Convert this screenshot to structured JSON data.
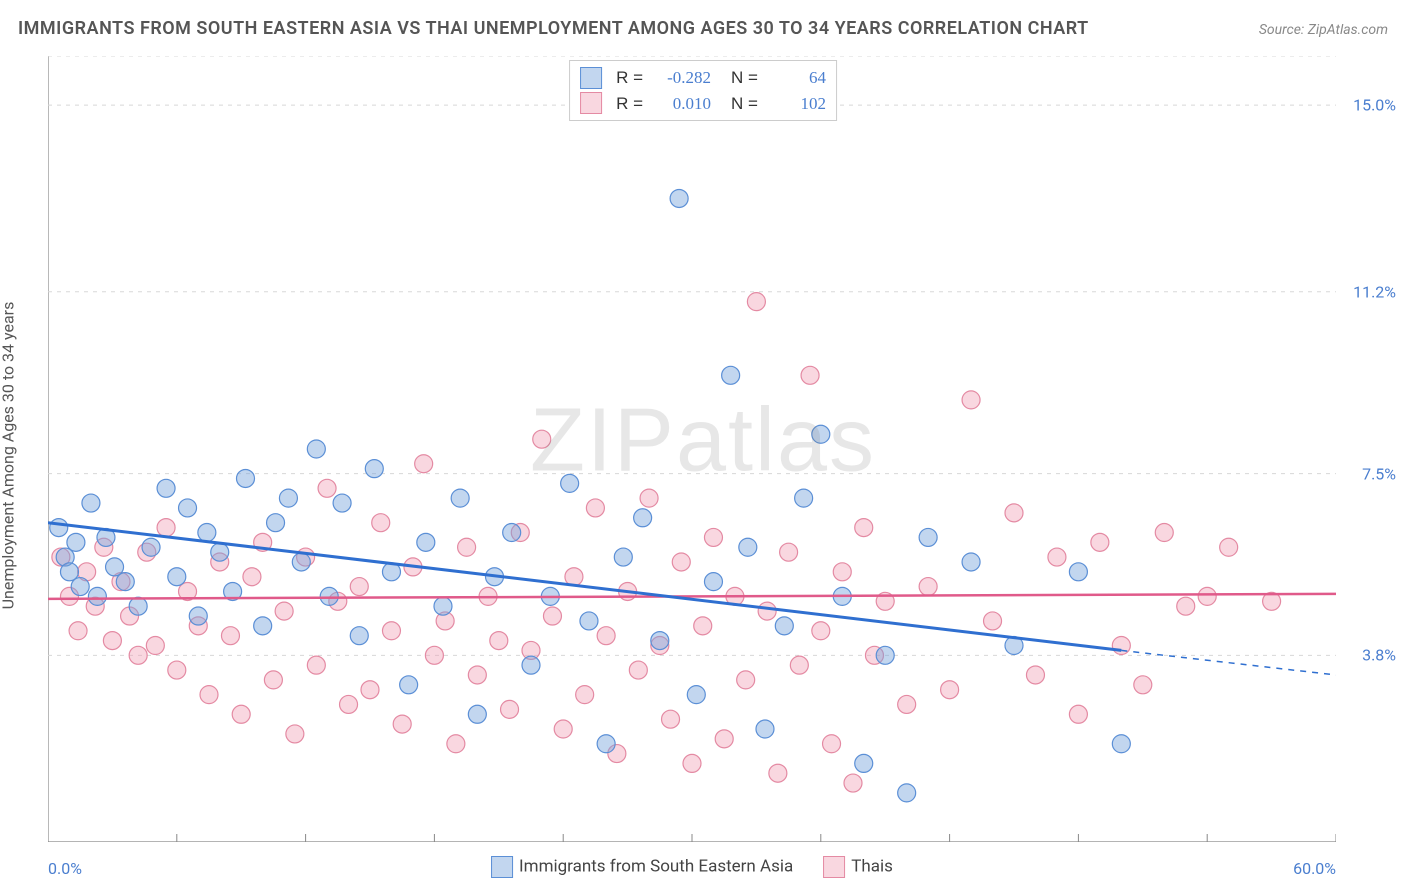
{
  "title": "IMMIGRANTS FROM SOUTH EASTERN ASIA VS THAI UNEMPLOYMENT AMONG AGES 30 TO 34 YEARS CORRELATION CHART",
  "source": "Source: ZipAtlas.com",
  "watermark": "ZIPatlas",
  "ylabel": "Unemployment Among Ages 30 to 34 years",
  "chart": {
    "type": "scatter",
    "background_color": "#ffffff",
    "grid_color": "#d8d8d8",
    "axis_color": "#888888",
    "xlim": [
      0.0,
      60.0
    ],
    "ylim": [
      0.0,
      16.0
    ],
    "xmin_label": "0.0%",
    "xmax_label": "60.0%",
    "yticks": [
      {
        "v": 3.8,
        "label": "3.8%"
      },
      {
        "v": 7.5,
        "label": "7.5%"
      },
      {
        "v": 11.2,
        "label": "11.2%"
      },
      {
        "v": 15.0,
        "label": "15.0%"
      }
    ],
    "xticks_minor": [
      0,
      6,
      12,
      18,
      24,
      30,
      36,
      42,
      48,
      54,
      60
    ],
    "series": [
      {
        "name_key": "blue",
        "label": "Immigrants from South Eastern Asia",
        "fill": "rgba(120,165,220,0.45)",
        "stroke": "#5b8fd6",
        "marker_radius": 9,
        "line_color": "#2f6fd0",
        "line_width": 3,
        "trend": {
          "x1": 0,
          "y1": 6.5,
          "x2": 50,
          "y2": 3.9,
          "x_dash_to": 60,
          "y_dash_to": 3.4
        },
        "R": "-0.282",
        "N": "64",
        "points": [
          [
            0.5,
            6.4
          ],
          [
            0.8,
            5.8
          ],
          [
            1.0,
            5.5
          ],
          [
            1.3,
            6.1
          ],
          [
            1.5,
            5.2
          ],
          [
            2.0,
            6.9
          ],
          [
            2.3,
            5.0
          ],
          [
            2.7,
            6.2
          ],
          [
            3.1,
            5.6
          ],
          [
            3.6,
            5.3
          ],
          [
            4.2,
            4.8
          ],
          [
            4.8,
            6.0
          ],
          [
            5.5,
            7.2
          ],
          [
            6.0,
            5.4
          ],
          [
            6.5,
            6.8
          ],
          [
            7.0,
            4.6
          ],
          [
            7.4,
            6.3
          ],
          [
            8.0,
            5.9
          ],
          [
            8.6,
            5.1
          ],
          [
            9.2,
            7.4
          ],
          [
            10.0,
            4.4
          ],
          [
            10.6,
            6.5
          ],
          [
            11.2,
            7.0
          ],
          [
            11.8,
            5.7
          ],
          [
            12.5,
            8.0
          ],
          [
            13.1,
            5.0
          ],
          [
            13.7,
            6.9
          ],
          [
            14.5,
            4.2
          ],
          [
            15.2,
            7.6
          ],
          [
            16.0,
            5.5
          ],
          [
            16.8,
            3.2
          ],
          [
            17.6,
            6.1
          ],
          [
            18.4,
            4.8
          ],
          [
            19.2,
            7.0
          ],
          [
            20.0,
            2.6
          ],
          [
            20.8,
            5.4
          ],
          [
            21.6,
            6.3
          ],
          [
            22.5,
            3.6
          ],
          [
            23.4,
            5.0
          ],
          [
            24.3,
            7.3
          ],
          [
            25.2,
            4.5
          ],
          [
            26.0,
            2.0
          ],
          [
            26.8,
            5.8
          ],
          [
            27.7,
            6.6
          ],
          [
            28.5,
            4.1
          ],
          [
            29.4,
            13.1
          ],
          [
            30.2,
            3.0
          ],
          [
            31.0,
            5.3
          ],
          [
            31.8,
            9.5
          ],
          [
            32.6,
            6.0
          ],
          [
            33.4,
            2.3
          ],
          [
            34.3,
            4.4
          ],
          [
            35.2,
            7.0
          ],
          [
            36.0,
            8.3
          ],
          [
            37.0,
            5.0
          ],
          [
            38.0,
            1.6
          ],
          [
            39.0,
            3.8
          ],
          [
            40.0,
            1.0
          ],
          [
            41.0,
            6.2
          ],
          [
            43.0,
            5.7
          ],
          [
            45.0,
            4.0
          ],
          [
            48.0,
            5.5
          ],
          [
            50.0,
            2.0
          ]
        ]
      },
      {
        "name_key": "pink",
        "label": "Thais",
        "fill": "rgba(240,160,180,0.42)",
        "stroke": "#e48aa3",
        "marker_radius": 9,
        "line_color": "#e05a8a",
        "line_width": 2.5,
        "trend": {
          "x1": 0,
          "y1": 4.95,
          "x2": 60,
          "y2": 5.05
        },
        "R": "0.010",
        "N": "102",
        "points": [
          [
            0.6,
            5.8
          ],
          [
            1.0,
            5.0
          ],
          [
            1.4,
            4.3
          ],
          [
            1.8,
            5.5
          ],
          [
            2.2,
            4.8
          ],
          [
            2.6,
            6.0
          ],
          [
            3.0,
            4.1
          ],
          [
            3.4,
            5.3
          ],
          [
            3.8,
            4.6
          ],
          [
            4.2,
            3.8
          ],
          [
            4.6,
            5.9
          ],
          [
            5.0,
            4.0
          ],
          [
            5.5,
            6.4
          ],
          [
            6.0,
            3.5
          ],
          [
            6.5,
            5.1
          ],
          [
            7.0,
            4.4
          ],
          [
            7.5,
            3.0
          ],
          [
            8.0,
            5.7
          ],
          [
            8.5,
            4.2
          ],
          [
            9.0,
            2.6
          ],
          [
            9.5,
            5.4
          ],
          [
            10.0,
            6.1
          ],
          [
            10.5,
            3.3
          ],
          [
            11.0,
            4.7
          ],
          [
            11.5,
            2.2
          ],
          [
            12.0,
            5.8
          ],
          [
            12.5,
            3.6
          ],
          [
            13.0,
            7.2
          ],
          [
            13.5,
            4.9
          ],
          [
            14.0,
            2.8
          ],
          [
            14.5,
            5.2
          ],
          [
            15.0,
            3.1
          ],
          [
            15.5,
            6.5
          ],
          [
            16.0,
            4.3
          ],
          [
            16.5,
            2.4
          ],
          [
            17.0,
            5.6
          ],
          [
            17.5,
            7.7
          ],
          [
            18.0,
            3.8
          ],
          [
            18.5,
            4.5
          ],
          [
            19.0,
            2.0
          ],
          [
            19.5,
            6.0
          ],
          [
            20.0,
            3.4
          ],
          [
            20.5,
            5.0
          ],
          [
            21.0,
            4.1
          ],
          [
            21.5,
            2.7
          ],
          [
            22.0,
            6.3
          ],
          [
            22.5,
            3.9
          ],
          [
            23.0,
            8.2
          ],
          [
            23.5,
            4.6
          ],
          [
            24.0,
            2.3
          ],
          [
            24.5,
            5.4
          ],
          [
            25.0,
            3.0
          ],
          [
            25.5,
            6.8
          ],
          [
            26.0,
            4.2
          ],
          [
            26.5,
            1.8
          ],
          [
            27.0,
            5.1
          ],
          [
            27.5,
            3.5
          ],
          [
            28.0,
            7.0
          ],
          [
            28.5,
            4.0
          ],
          [
            29.0,
            2.5
          ],
          [
            29.5,
            5.7
          ],
          [
            30.0,
            1.6
          ],
          [
            30.5,
            4.4
          ],
          [
            31.0,
            6.2
          ],
          [
            31.5,
            2.1
          ],
          [
            32.0,
            5.0
          ],
          [
            32.5,
            3.3
          ],
          [
            33.0,
            11.0
          ],
          [
            33.5,
            4.7
          ],
          [
            34.0,
            1.4
          ],
          [
            34.5,
            5.9
          ],
          [
            35.0,
            3.6
          ],
          [
            35.5,
            9.5
          ],
          [
            36.0,
            4.3
          ],
          [
            36.5,
            2.0
          ],
          [
            37.0,
            5.5
          ],
          [
            37.5,
            1.2
          ],
          [
            38.0,
            6.4
          ],
          [
            38.5,
            3.8
          ],
          [
            39.0,
            4.9
          ],
          [
            40.0,
            2.8
          ],
          [
            41.0,
            5.2
          ],
          [
            42.0,
            3.1
          ],
          [
            43.0,
            9.0
          ],
          [
            44.0,
            4.5
          ],
          [
            45.0,
            6.7
          ],
          [
            46.0,
            3.4
          ],
          [
            47.0,
            5.8
          ],
          [
            48.0,
            2.6
          ],
          [
            49.0,
            6.1
          ],
          [
            50.0,
            4.0
          ],
          [
            51.0,
            3.2
          ],
          [
            52.0,
            6.3
          ],
          [
            53.0,
            4.8
          ],
          [
            54.0,
            5.0
          ],
          [
            55.0,
            6.0
          ],
          [
            57.0,
            4.9
          ]
        ]
      }
    ]
  },
  "colors": {
    "title_text": "#555555",
    "source_text": "#888888",
    "tick_text": "#4a7ecf",
    "legend_text": "#444444"
  },
  "fonts": {
    "title_size_pt": 14,
    "label_size_pt": 12,
    "tick_size_pt": 12,
    "legend_size_pt": 13
  }
}
